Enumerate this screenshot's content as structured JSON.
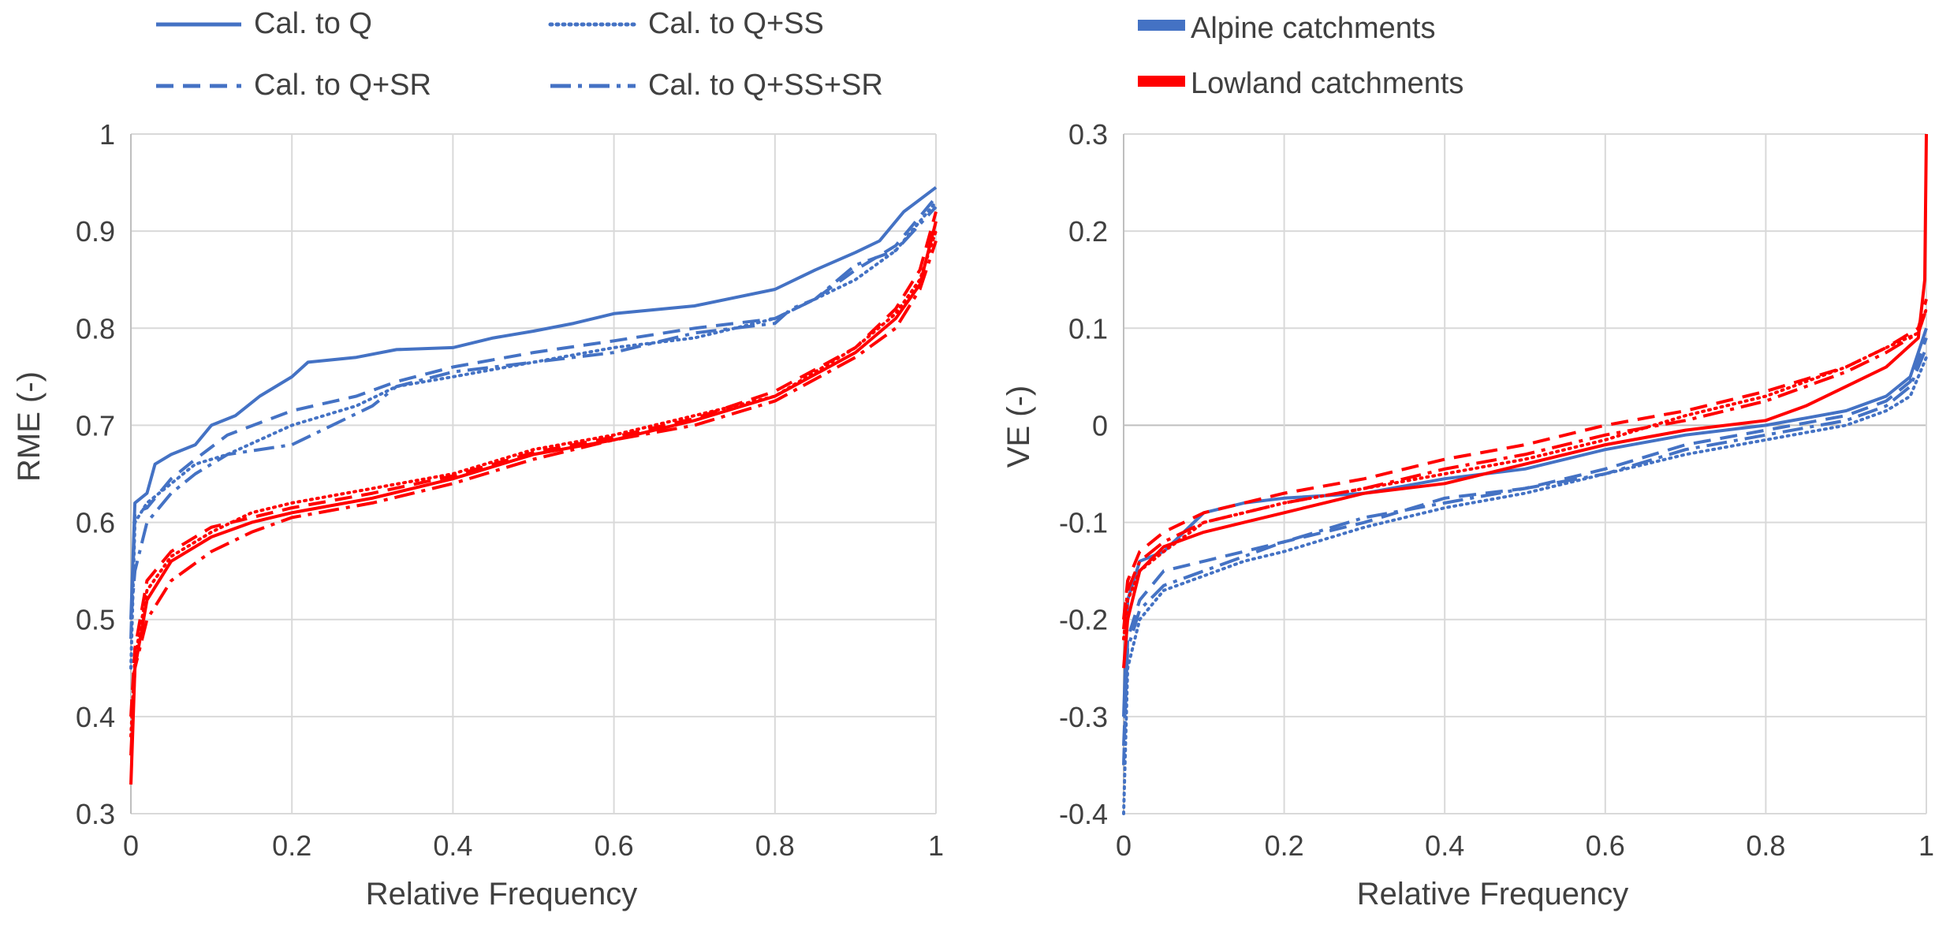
{
  "chart_data": [
    {
      "type": "line",
      "panel": "left",
      "xlabel": "Relative Frequency",
      "ylabel": "RME (-)",
      "xlim": [
        0,
        1
      ],
      "ylim": [
        0.3,
        1
      ],
      "xticks": [
        0,
        0.2,
        0.4,
        0.6,
        0.8,
        1
      ],
      "xtick_labels": [
        "0",
        "0.2",
        "0.4",
        "0.6",
        "0.8",
        "1"
      ],
      "yticks": [
        0.3,
        0.4,
        0.5,
        0.6,
        0.7,
        0.8,
        0.9,
        1
      ],
      "ytick_labels": [
        "0.3",
        "0.4",
        "0.5",
        "0.6",
        "0.7",
        "0.8",
        "0.9",
        "1"
      ],
      "grid": true,
      "legend": {
        "placement": "top",
        "entries": [
          {
            "label": "Cal. to Q",
            "style": "solid"
          },
          {
            "label": "Cal. to Q+SS",
            "style": "dotted"
          },
          {
            "label": "Cal. to Q+SR",
            "style": "dashed"
          },
          {
            "label": "Cal. to Q+SS+SR",
            "style": "dashdot"
          }
        ]
      },
      "series": [
        {
          "name": "Alpine - Cal. to Q",
          "group": "Alpine catchments",
          "style": "solid",
          "x": [
            0,
            0.005,
            0.02,
            0.03,
            0.05,
            0.08,
            0.1,
            0.13,
            0.16,
            0.2,
            0.22,
            0.28,
            0.33,
            0.4,
            0.45,
            0.5,
            0.55,
            0.6,
            0.7,
            0.8,
            0.85,
            0.9,
            0.93,
            0.96,
            1.0
          ],
          "y": [
            0.5,
            0.62,
            0.63,
            0.66,
            0.67,
            0.68,
            0.7,
            0.71,
            0.73,
            0.75,
            0.765,
            0.77,
            0.778,
            0.78,
            0.79,
            0.797,
            0.805,
            0.815,
            0.823,
            0.84,
            0.86,
            0.878,
            0.89,
            0.92,
            0.945
          ]
        },
        {
          "name": "Alpine - Cal. to Q+SS",
          "group": "Alpine catchments",
          "style": "dotted",
          "x": [
            0,
            0.005,
            0.02,
            0.05,
            0.08,
            0.12,
            0.2,
            0.28,
            0.33,
            0.4,
            0.5,
            0.6,
            0.7,
            0.8,
            0.85,
            0.9,
            0.95,
            1.0
          ],
          "y": [
            0.45,
            0.6,
            0.62,
            0.64,
            0.66,
            0.67,
            0.7,
            0.72,
            0.74,
            0.75,
            0.765,
            0.78,
            0.79,
            0.81,
            0.83,
            0.85,
            0.88,
            0.93
          ]
        },
        {
          "name": "Alpine - Cal. to Q+SR",
          "group": "Alpine catchments",
          "style": "dashed",
          "x": [
            0,
            0.005,
            0.02,
            0.05,
            0.08,
            0.12,
            0.2,
            0.28,
            0.33,
            0.4,
            0.5,
            0.6,
            0.7,
            0.8,
            0.85,
            0.9,
            0.95,
            1.0
          ],
          "y": [
            0.48,
            0.61,
            0.615,
            0.645,
            0.665,
            0.69,
            0.715,
            0.73,
            0.745,
            0.76,
            0.775,
            0.787,
            0.8,
            0.81,
            0.83,
            0.86,
            0.885,
            0.935
          ]
        },
        {
          "name": "Alpine - Cal. to Q+SS+SR",
          "group": "Alpine catchments",
          "style": "dashdot",
          "x": [
            0,
            0.005,
            0.02,
            0.05,
            0.08,
            0.12,
            0.2,
            0.25,
            0.3,
            0.33,
            0.4,
            0.5,
            0.6,
            0.7,
            0.8,
            0.82,
            0.85,
            0.9,
            0.95,
            1.0
          ],
          "y": [
            0.5,
            0.55,
            0.6,
            0.63,
            0.65,
            0.67,
            0.68,
            0.7,
            0.72,
            0.74,
            0.755,
            0.765,
            0.775,
            0.795,
            0.805,
            0.82,
            0.83,
            0.865,
            0.88,
            0.925
          ]
        },
        {
          "name": "Lowland - Cal. to Q",
          "group": "Lowland catchments",
          "style": "solid",
          "x": [
            0,
            0.005,
            0.02,
            0.05,
            0.1,
            0.15,
            0.2,
            0.3,
            0.4,
            0.5,
            0.6,
            0.7,
            0.8,
            0.9,
            0.95,
            0.98,
            1.0
          ],
          "y": [
            0.33,
            0.45,
            0.52,
            0.56,
            0.585,
            0.6,
            0.61,
            0.625,
            0.645,
            0.67,
            0.685,
            0.705,
            0.73,
            0.775,
            0.81,
            0.845,
            0.91
          ]
        },
        {
          "name": "Lowland - Cal. to Q+SS",
          "group": "Lowland catchments",
          "style": "dotted",
          "x": [
            0,
            0.005,
            0.02,
            0.05,
            0.1,
            0.15,
            0.2,
            0.3,
            0.4,
            0.5,
            0.6,
            0.7,
            0.8,
            0.9,
            0.95,
            0.98,
            1.0
          ],
          "y": [
            0.38,
            0.46,
            0.53,
            0.565,
            0.59,
            0.61,
            0.62,
            0.635,
            0.65,
            0.675,
            0.69,
            0.71,
            0.73,
            0.78,
            0.815,
            0.85,
            0.9
          ]
        },
        {
          "name": "Lowland - Cal. to Q+SR",
          "group": "Lowland catchments",
          "style": "dashed",
          "x": [
            0,
            0.005,
            0.02,
            0.05,
            0.1,
            0.15,
            0.2,
            0.3,
            0.4,
            0.5,
            0.6,
            0.7,
            0.8,
            0.9,
            0.95,
            0.98,
            1.0
          ],
          "y": [
            0.4,
            0.47,
            0.54,
            0.57,
            0.595,
            0.605,
            0.615,
            0.63,
            0.648,
            0.672,
            0.688,
            0.707,
            0.735,
            0.78,
            0.82,
            0.86,
            0.92
          ]
        },
        {
          "name": "Lowland - Cal. to Q+SS+SR",
          "group": "Lowland catchments",
          "style": "dashdot",
          "x": [
            0,
            0.005,
            0.02,
            0.05,
            0.1,
            0.15,
            0.2,
            0.3,
            0.4,
            0.5,
            0.6,
            0.7,
            0.8,
            0.9,
            0.95,
            0.98,
            1.0
          ],
          "y": [
            0.36,
            0.45,
            0.5,
            0.54,
            0.57,
            0.59,
            0.605,
            0.62,
            0.64,
            0.665,
            0.685,
            0.7,
            0.725,
            0.77,
            0.8,
            0.84,
            0.89
          ]
        }
      ]
    },
    {
      "type": "line",
      "panel": "right",
      "xlabel": "Relative Frequency",
      "ylabel": "VE (-)",
      "xlim": [
        0,
        1
      ],
      "ylim": [
        -0.4,
        0.3
      ],
      "xticks": [
        0,
        0.2,
        0.4,
        0.6,
        0.8,
        1
      ],
      "xtick_labels": [
        "0",
        "0.2",
        "0.4",
        "0.6",
        "0.8",
        "1"
      ],
      "yticks": [
        -0.4,
        -0.3,
        -0.2,
        -0.1,
        0,
        0.1,
        0.2,
        0.3
      ],
      "ytick_labels": [
        "-0.4",
        "-0.3",
        "-0.2",
        "-0.1",
        "0",
        "0.1",
        "0.2",
        "0.3"
      ],
      "grid": true,
      "legend": {
        "placement": "top",
        "entries": [
          {
            "label": "Alpine catchments",
            "color": "#4472C4"
          },
          {
            "label": "Lowland catchments",
            "color": "#FF0000"
          }
        ]
      },
      "series": [
        {
          "name": "Alpine - Cal. to Q",
          "group": "Alpine catchments",
          "style": "solid",
          "x": [
            0,
            0.005,
            0.02,
            0.05,
            0.1,
            0.15,
            0.2,
            0.3,
            0.4,
            0.5,
            0.6,
            0.7,
            0.8,
            0.9,
            0.95,
            0.98,
            1.0
          ],
          "y": [
            -0.3,
            -0.18,
            -0.14,
            -0.13,
            -0.09,
            -0.08,
            -0.075,
            -0.07,
            -0.055,
            -0.045,
            -0.025,
            -0.01,
            0.0,
            0.015,
            0.03,
            0.05,
            0.1
          ]
        },
        {
          "name": "Alpine - Cal. to Q+SS",
          "group": "Alpine catchments",
          "style": "dotted",
          "x": [
            0,
            0.005,
            0.02,
            0.05,
            0.1,
            0.15,
            0.2,
            0.3,
            0.4,
            0.5,
            0.6,
            0.7,
            0.8,
            0.9,
            0.95,
            0.98,
            1.0
          ],
          "y": [
            -0.4,
            -0.25,
            -0.2,
            -0.17,
            -0.155,
            -0.14,
            -0.13,
            -0.105,
            -0.085,
            -0.07,
            -0.05,
            -0.03,
            -0.015,
            0.0,
            0.015,
            0.03,
            0.07
          ]
        },
        {
          "name": "Alpine - Cal. to Q+SR",
          "group": "Alpine catchments",
          "style": "dashed",
          "x": [
            0,
            0.005,
            0.02,
            0.05,
            0.1,
            0.15,
            0.2,
            0.3,
            0.4,
            0.5,
            0.6,
            0.7,
            0.8,
            0.9,
            0.95,
            0.98,
            1.0
          ],
          "y": [
            -0.35,
            -0.22,
            -0.18,
            -0.15,
            -0.14,
            -0.13,
            -0.12,
            -0.1,
            -0.075,
            -0.065,
            -0.045,
            -0.02,
            -0.005,
            0.01,
            0.025,
            0.045,
            0.09
          ]
        },
        {
          "name": "Alpine - Cal. to Q+SS+SR",
          "group": "Alpine catchments",
          "style": "dashdot",
          "x": [
            0,
            0.005,
            0.02,
            0.05,
            0.1,
            0.15,
            0.2,
            0.3,
            0.4,
            0.5,
            0.6,
            0.7,
            0.8,
            0.9,
            0.95,
            0.98,
            1.0
          ],
          "y": [
            -0.33,
            -0.23,
            -0.19,
            -0.165,
            -0.15,
            -0.135,
            -0.12,
            -0.095,
            -0.08,
            -0.065,
            -0.05,
            -0.025,
            -0.01,
            0.005,
            0.02,
            0.04,
            0.08
          ]
        },
        {
          "name": "Lowland - Cal. to Q",
          "group": "Lowland catchments",
          "style": "solid",
          "x": [
            0,
            0.005,
            0.02,
            0.05,
            0.1,
            0.15,
            0.2,
            0.3,
            0.4,
            0.5,
            0.6,
            0.7,
            0.8,
            0.85,
            0.9,
            0.95,
            0.99,
            0.998,
            1.0
          ],
          "y": [
            -0.25,
            -0.2,
            -0.15,
            -0.125,
            -0.11,
            -0.1,
            -0.09,
            -0.07,
            -0.06,
            -0.04,
            -0.02,
            -0.005,
            0.005,
            0.02,
            0.04,
            0.06,
            0.09,
            0.15,
            0.3
          ]
        },
        {
          "name": "Lowland - Cal. to Q+SS",
          "group": "Lowland catchments",
          "style": "dotted",
          "x": [
            0,
            0.005,
            0.02,
            0.05,
            0.1,
            0.15,
            0.2,
            0.3,
            0.4,
            0.5,
            0.6,
            0.7,
            0.8,
            0.9,
            0.95,
            0.99,
            1.0
          ],
          "y": [
            -0.22,
            -0.18,
            -0.15,
            -0.13,
            -0.1,
            -0.09,
            -0.08,
            -0.065,
            -0.05,
            -0.035,
            -0.015,
            0.01,
            0.03,
            0.06,
            0.08,
            0.095,
            0.12
          ]
        },
        {
          "name": "Lowland - Cal. to Q+SR",
          "group": "Lowland catchments",
          "style": "dashed",
          "x": [
            0,
            0.005,
            0.02,
            0.05,
            0.1,
            0.15,
            0.2,
            0.3,
            0.4,
            0.5,
            0.6,
            0.7,
            0.8,
            0.9,
            0.95,
            0.99,
            1.0
          ],
          "y": [
            -0.2,
            -0.16,
            -0.13,
            -0.11,
            -0.09,
            -0.08,
            -0.07,
            -0.055,
            -0.035,
            -0.02,
            0.0,
            0.015,
            0.035,
            0.06,
            0.08,
            0.1,
            0.13
          ]
        },
        {
          "name": "Lowland - Cal. to Q+SS+SR",
          "group": "Lowland catchments",
          "style": "dashdot",
          "x": [
            0,
            0.005,
            0.02,
            0.05,
            0.1,
            0.15,
            0.2,
            0.3,
            0.4,
            0.5,
            0.6,
            0.7,
            0.8,
            0.9,
            0.95,
            0.99,
            1.0
          ],
          "y": [
            -0.21,
            -0.17,
            -0.14,
            -0.12,
            -0.1,
            -0.09,
            -0.08,
            -0.065,
            -0.045,
            -0.03,
            -0.01,
            0.005,
            0.025,
            0.055,
            0.075,
            0.095,
            0.12
          ]
        }
      ]
    }
  ],
  "colors": {
    "alpine": "#4472C4",
    "lowland": "#FF0000",
    "grid": "#D9D9D9",
    "axis": "#BFBFBF",
    "text": "#404040"
  }
}
